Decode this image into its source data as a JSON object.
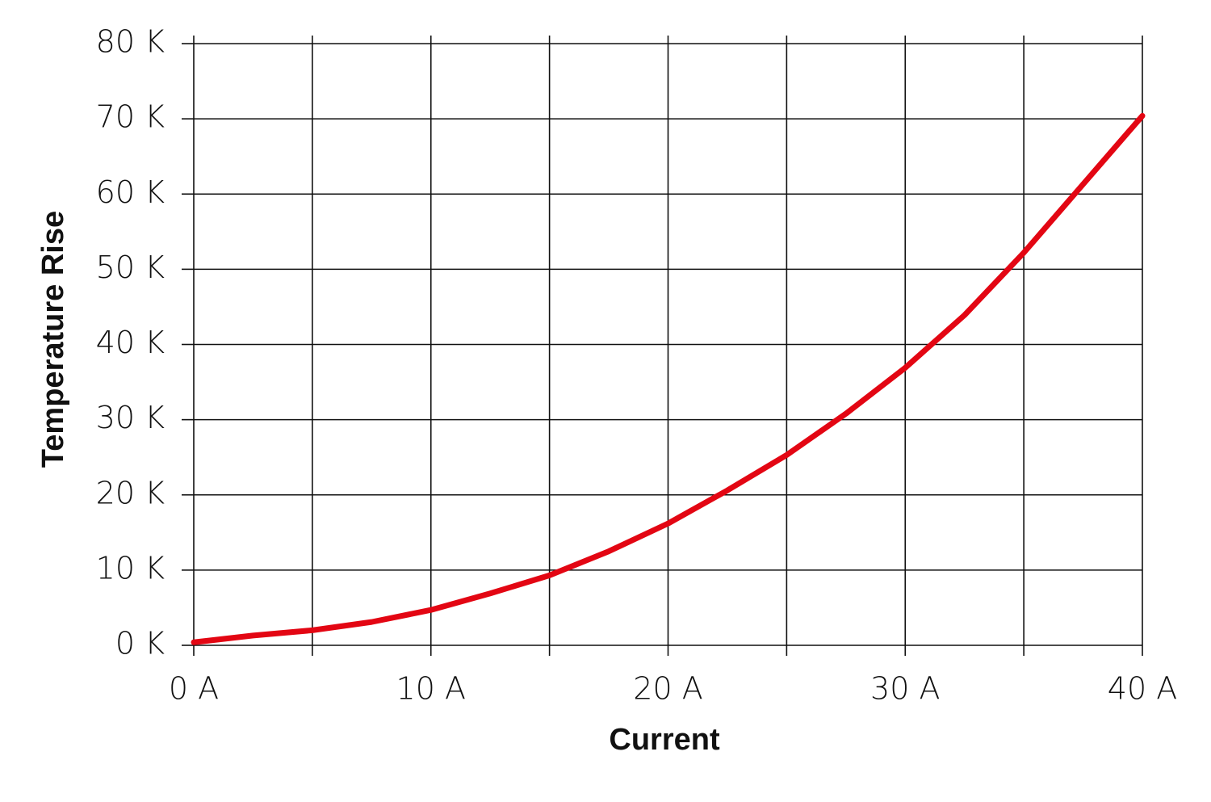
{
  "chart_data": {
    "type": "line",
    "x_label": "Current",
    "y_label": "Temperature Rise",
    "x": [
      0,
      2.5,
      5,
      7.5,
      10,
      12.5,
      15,
      17.5,
      20,
      22.5,
      25,
      27.5,
      30,
      32.5,
      35,
      37.5,
      40
    ],
    "series": [
      {
        "name": "Temperature Rise",
        "color": "#e30613",
        "values": [
          0.4,
          1.3,
          2.0,
          3.1,
          4.7,
          6.9,
          9.3,
          12.5,
          16.2,
          20.6,
          25.3,
          30.8,
          36.9,
          43.9,
          52.2,
          61.3,
          70.4
        ]
      }
    ],
    "xlim": [
      0,
      40
    ],
    "ylim": [
      0,
      80
    ],
    "xticks": [
      {
        "value": 0,
        "label": "0 A"
      },
      {
        "value": 10,
        "label": "10 A"
      },
      {
        "value": 20,
        "label": "20 A"
      },
      {
        "value": 30,
        "label": "30 A"
      },
      {
        "value": 40,
        "label": "40 A"
      }
    ],
    "xminor_ticks": [
      5,
      15,
      25,
      35
    ],
    "yticks": [
      {
        "value": 0,
        "label": "0 K"
      },
      {
        "value": 10,
        "label": "10 K"
      },
      {
        "value": 20,
        "label": "20 K"
      },
      {
        "value": 30,
        "label": "30 K"
      },
      {
        "value": 40,
        "label": "40 K"
      },
      {
        "value": 50,
        "label": "50 K"
      },
      {
        "value": 60,
        "label": "60 K"
      },
      {
        "value": 70,
        "label": "70 K"
      },
      {
        "value": 80,
        "label": "80 K"
      }
    ],
    "grid": true
  }
}
